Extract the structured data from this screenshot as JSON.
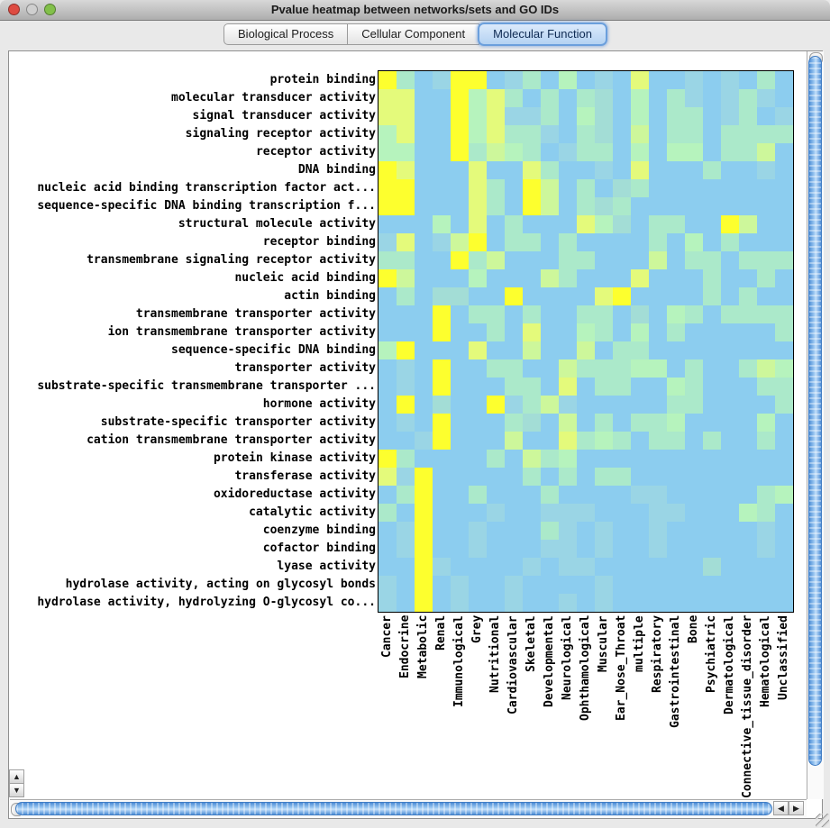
{
  "window": {
    "title": "Pvalue heatmap between networks/sets and GO IDs",
    "traffic_lights": {
      "close": "#DE4B41",
      "minimize": "#CFCFCF",
      "zoom": "#82C04A"
    }
  },
  "tabs": [
    {
      "label": "Biological Process",
      "selected": false
    },
    {
      "label": "Cellular Component",
      "selected": false
    },
    {
      "label": "Molecular Function",
      "selected": true
    }
  ],
  "icons": {
    "up": "▲",
    "down": "▼",
    "left": "◀",
    "right": "▶"
  },
  "chart_data": {
    "type": "heatmap",
    "rows": [
      "protein binding",
      "molecular transducer activity",
      "signal transducer activity",
      "signaling receptor activity",
      "receptor activity",
      "DNA binding",
      "nucleic acid binding transcription factor act...",
      "sequence-specific DNA binding transcription f...",
      "structural molecule activity",
      "receptor binding",
      "transmembrane signaling receptor activity",
      "nucleic acid binding",
      "actin binding",
      "transmembrane transporter activity",
      "ion transmembrane transporter activity",
      "sequence-specific DNA binding",
      "transporter activity",
      "substrate-specific transmembrane transporter ...",
      "hormone activity",
      "substrate-specific transporter activity",
      "cation transmembrane transporter activity",
      "protein kinase activity",
      "transferase activity",
      "oxidoreductase activity",
      "catalytic activity",
      "coenzyme binding",
      "cofactor binding",
      "lyase activity",
      "hydrolase activity, acting on glycosyl bonds",
      "hydrolase activity, hydrolyzing O-glycosyl co..."
    ],
    "columns": [
      "Cancer",
      "Endocrine",
      "Metabolic",
      "Renal",
      "Immunological",
      "Grey",
      "Nutritional",
      "Cardiovascular",
      "Skeletal",
      "Developmental",
      "Neurological",
      "Ophthamological",
      "Muscular",
      "Ear_Nose_Throat",
      "multiple",
      "Respiratory",
      "Gastrointestinal",
      "Bone",
      "Psychiatric",
      "Dermatological",
      "Connective_tissue_disorder",
      "Hematological",
      "Unclassified"
    ],
    "palette": {
      "B": "#8CCDEF",
      "a": "#9AD5E5",
      "T": "#A3DDD6",
      "A": "#ABE9CA",
      "G": "#B6F3BD",
      "g": "#CDF79B",
      "L": "#E4FA7B",
      "Y": "#FDFF2E"
    },
    "cells": [
      "YABaYYBaABGBaBLBBaBaBAB",
      "LLBBYGLABABATBGBAaBaAaB",
      "LLBBYGLaaABGTBGBAABaABa",
      "GLBBYGLAAaBATBgBAABAAAA",
      "GGBBYAgGABaAABGBGGBAAgB",
      "YLBBBLBBLABBaBLBBBABBaB",
      "YYBBBLABYgBABTABBBBBBBB",
      "YYBBBLABYgBATABBBBBBBBB",
      "BBBGBLBABBBLGTBAABBYgBB",
      "aLBagYBAABABBBBABGBABBB",
      "AABBYAgBBBAABBBgBAABAAA",
      "YgBBBGBBBgABBBLBBBABBAB",
      "BABTTBBYBBBBLYBBBBABABB",
      "BBBYBAABABBAABTBGABAAAA",
      "BBBYBBABLBBGABGBABBBBBA",
      "GYBBBLBBgBBgBAABBBBBBBB",
      "BaBYBBAABBgAAAGGBABBAgG",
      "BaBYBBBAABLBAABBGABBBAA",
      "BYBTBBYaAgaBBBBBAABBBBA",
      "BaBYBBBATBgBABAAGBBBBGB",
      "BBaYBBBgBBLAGABAABABBAB",
      "YABBBBABgAGBBBBBBBBBBBB",
      "LaYBBBBBABABAABBBBBBBBB",
      "BAYBBABBBABBBBaaBBBBBAG",
      "ABYBBBaBBaaaBBBaaBBBGAB",
      "BaYBBaBBBAaBaBBaBBBBBaB",
      "BaYBBaBBBaaBaBBaBBBBBaB",
      "BBYaBBBBaBaaBBBBBBTBBBB",
      "aBYBaBBaBBBBaBBBBBBBBBB",
      "aBYBaBBaBBaBaBBBBBBBBBB"
    ]
  }
}
